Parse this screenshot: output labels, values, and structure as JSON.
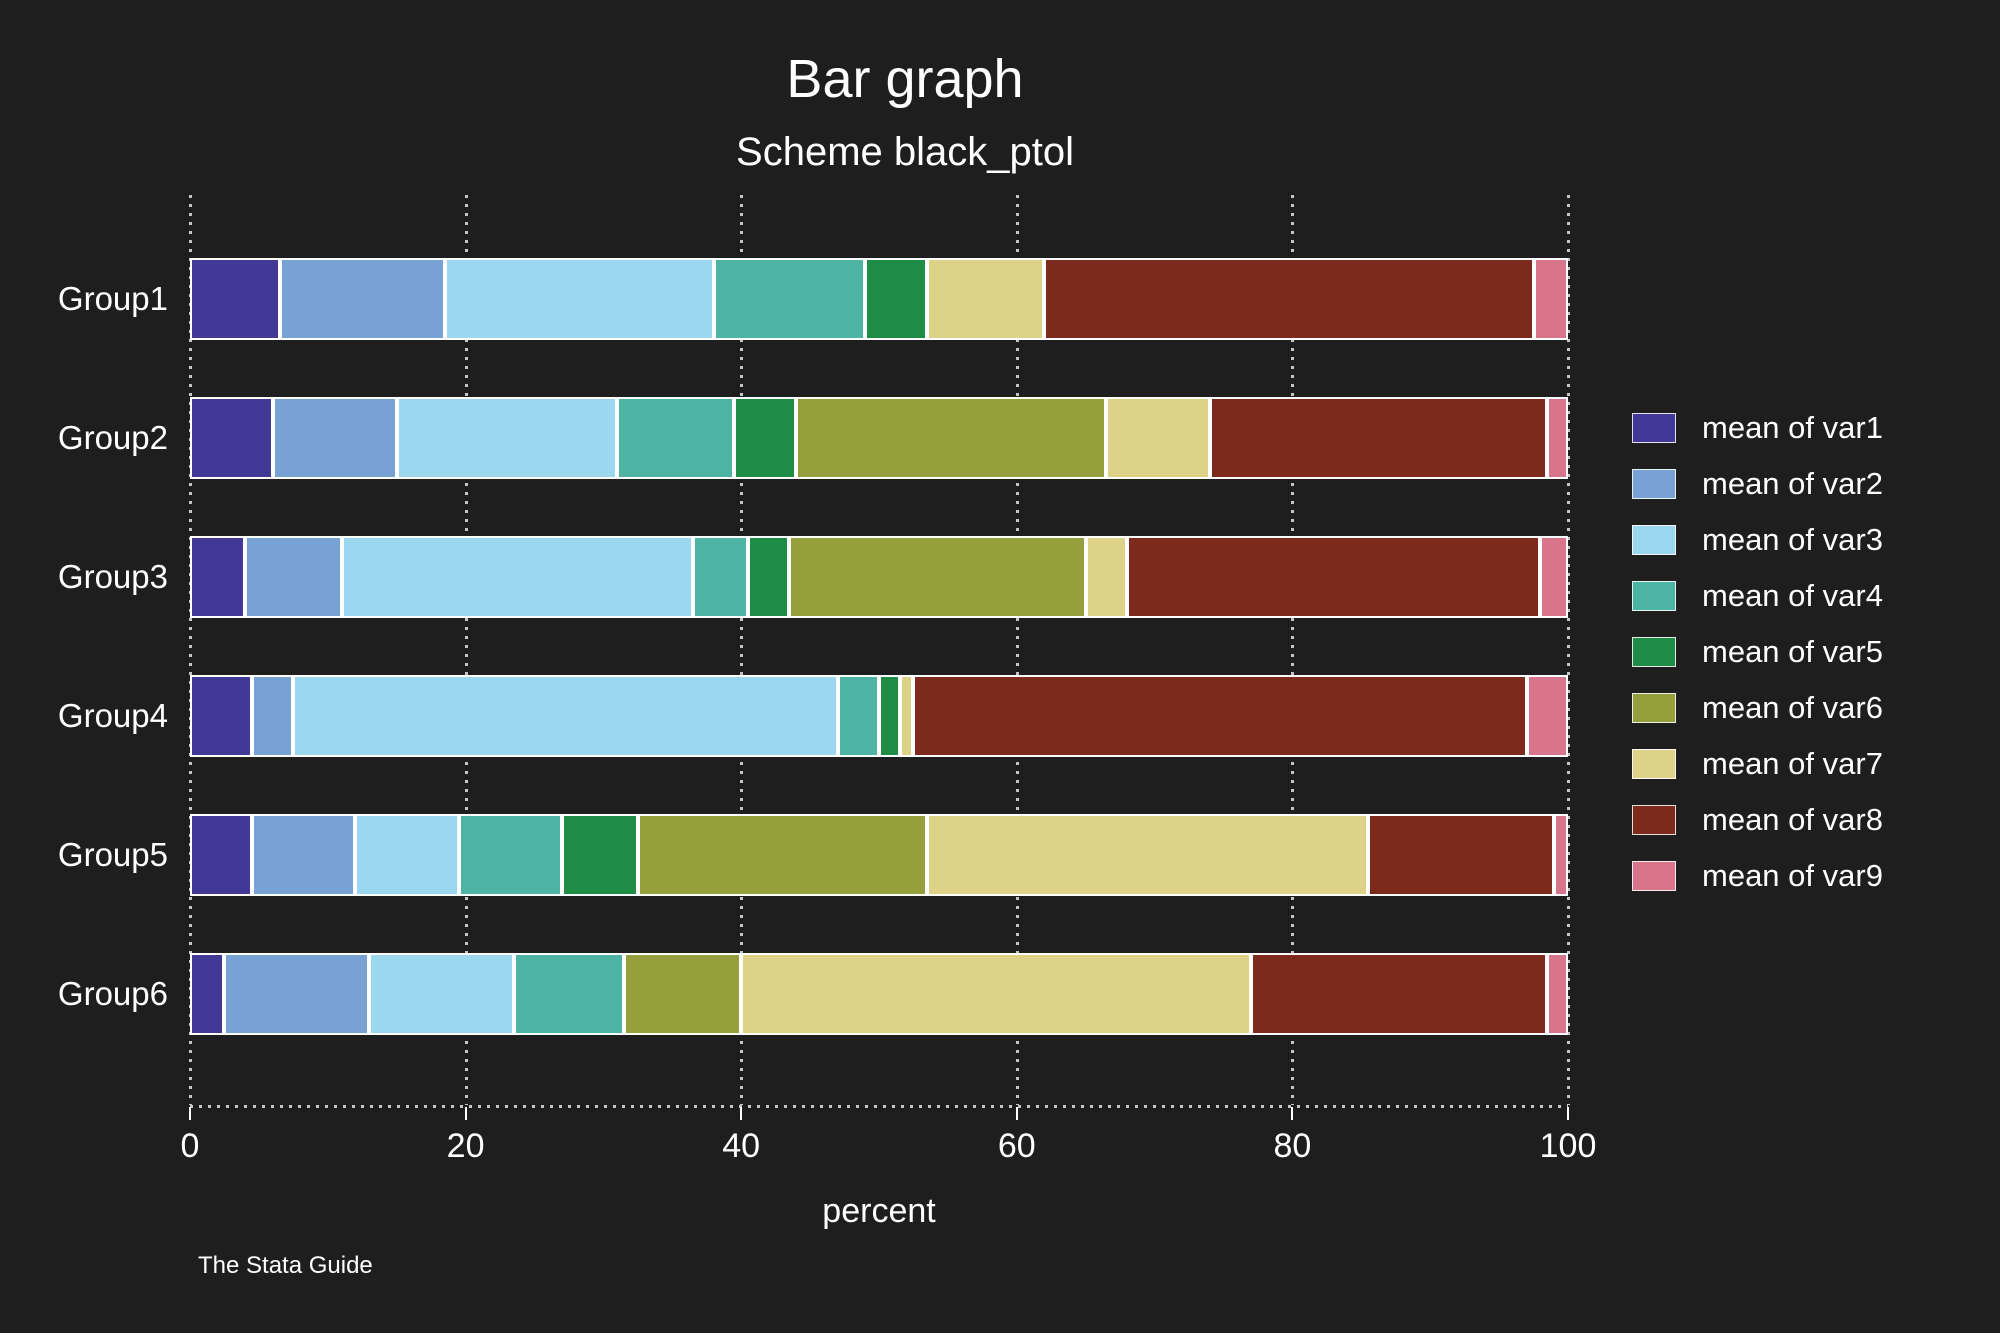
{
  "title": "Bar graph",
  "subtitle": "Scheme black_ptol",
  "caption": "The Stata Guide",
  "background_color": "#1e1e1e",
  "text_color": "#ffffff",
  "chart_data": {
    "type": "bar",
    "orientation": "horizontal",
    "stacked": true,
    "title": "Bar graph",
    "subtitle": "Scheme black_ptol",
    "xlabel": "percent",
    "xlim": [
      0,
      100
    ],
    "x_ticks": [
      0,
      20,
      40,
      60,
      80,
      100
    ],
    "grid": "dotted-vertical",
    "legend_position": "right",
    "categories": [
      "Group1",
      "Group2",
      "Group3",
      "Group4",
      "Group5",
      "Group6"
    ],
    "series": [
      {
        "name": "mean of var1",
        "color": "#423996",
        "values": [
          6.5,
          6,
          4,
          4.5,
          4.5,
          2.5
        ]
      },
      {
        "name": "mean of var2",
        "color": "#78a2d4",
        "values": [
          12,
          9,
          7,
          3,
          7.5,
          10.5
        ]
      },
      {
        "name": "mean of var3",
        "color": "#9cd7f0",
        "values": [
          19.5,
          16,
          25.5,
          39.5,
          7.5,
          10.5
        ]
      },
      {
        "name": "mean of var4",
        "color": "#4db3a3",
        "values": [
          11,
          8.5,
          4,
          3,
          7.5,
          8
        ]
      },
      {
        "name": "mean of var5",
        "color": "#1e8c45",
        "values": [
          4.5,
          4.5,
          3,
          1.5,
          5.5,
          0
        ]
      },
      {
        "name": "mean of var6",
        "color": "#95a03d",
        "values": [
          0,
          22.5,
          21.5,
          0,
          21,
          8.5
        ]
      },
      {
        "name": "mean of var7",
        "color": "#ded289",
        "values": [
          8.5,
          7.5,
          3,
          1,
          32,
          37
        ]
      },
      {
        "name": "mean of var8",
        "color": "#7d2a1d",
        "values": [
          35.5,
          24.5,
          30,
          44.5,
          13.5,
          21.5
        ]
      },
      {
        "name": "mean of var9",
        "color": "#d8758b",
        "values": [
          2.5,
          1.5,
          2,
          3,
          1,
          1.5
        ]
      }
    ]
  }
}
